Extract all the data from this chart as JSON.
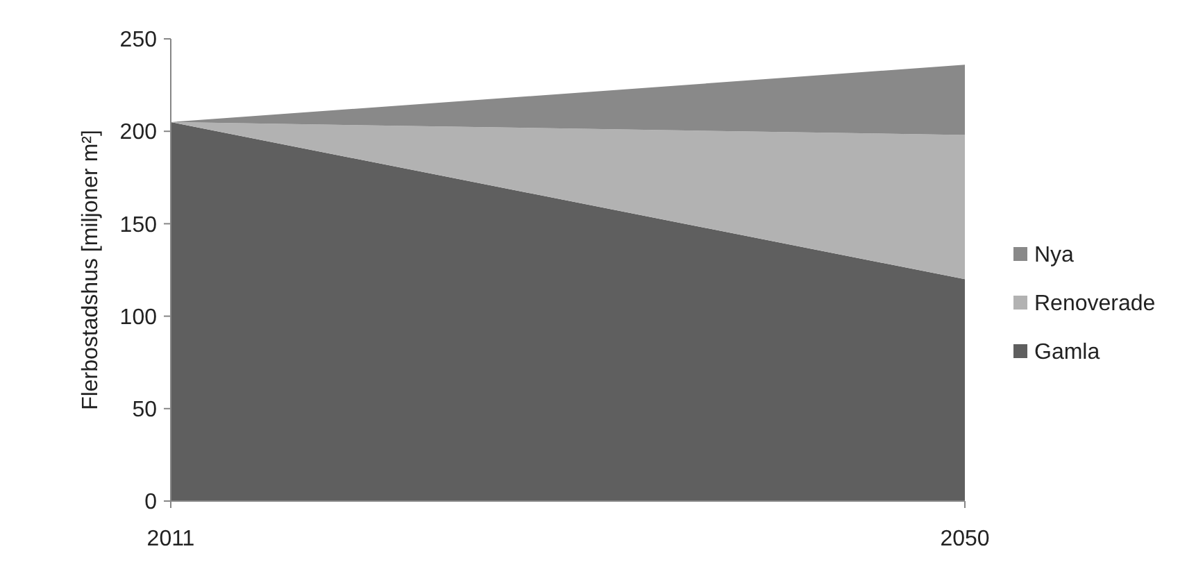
{
  "chart_data": {
    "type": "area",
    "stacked": true,
    "ylabel": "Flerbostadshus [miljoner m²]",
    "x": [
      2011,
      2050
    ],
    "series": [
      {
        "name": "Gamla",
        "color": "#5f5f5f",
        "values": [
          205,
          120
        ]
      },
      {
        "name": "Renoverade",
        "color": "#b2b2b2",
        "values": [
          0,
          78
        ]
      },
      {
        "name": "Nya",
        "color": "#898989",
        "values": [
          0,
          38
        ]
      }
    ],
    "xlim": [
      2011,
      2050
    ],
    "xticks": [
      2011,
      2050
    ],
    "ylim": [
      0,
      250
    ],
    "yticks": [
      0,
      50,
      100,
      150,
      200,
      250
    ],
    "grid": false,
    "legend": "right"
  }
}
